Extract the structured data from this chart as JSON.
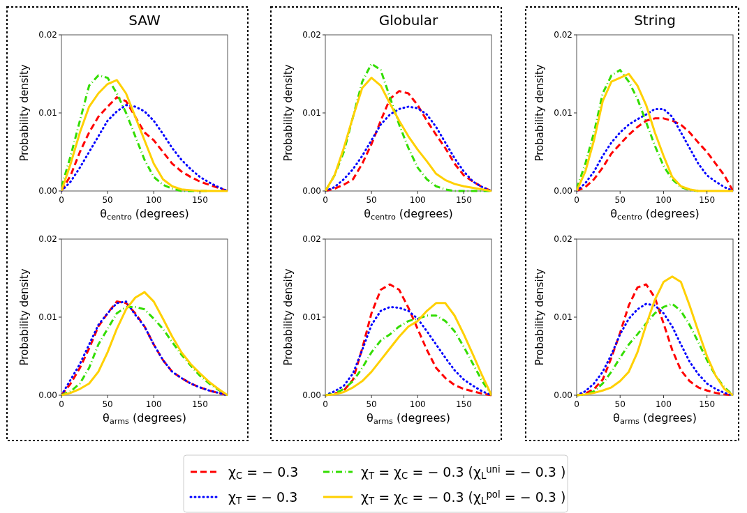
{
  "chart_data": [
    {
      "type": "line",
      "title": "SAW",
      "xlabel": "θ$_{centro}$ (degrees)",
      "ylabel": "Probability density",
      "xlim": [
        0,
        180
      ],
      "xticks": [
        0,
        50,
        100,
        150
      ],
      "ylim": [
        0,
        0.02
      ],
      "yticks": [
        {
          "value": 0,
          "label": "0.00"
        },
        {
          "value": 0.01,
          "label": "0.01"
        },
        {
          "value": 0.02,
          "label": "0.02"
        }
      ],
      "x": [
        0,
        10,
        20,
        30,
        40,
        50,
        60,
        70,
        80,
        90,
        100,
        110,
        120,
        130,
        140,
        150,
        160,
        170,
        180
      ],
      "series": [
        {
          "color": "#ff0000",
          "line_style": "dashed",
          "values": [
            0,
            0.002,
            0.005,
            0.0075,
            0.0095,
            0.0108,
            0.012,
            0.0115,
            0.0095,
            0.0075,
            0.0065,
            0.005,
            0.0035,
            0.0025,
            0.0018,
            0.0012,
            0.0008,
            0.0004,
            0
          ]
        },
        {
          "color": "#0000ff",
          "line_style": "dotted",
          "values": [
            0,
            0.0012,
            0.003,
            0.005,
            0.007,
            0.009,
            0.0102,
            0.011,
            0.0108,
            0.0102,
            0.009,
            0.0073,
            0.0055,
            0.004,
            0.0028,
            0.0018,
            0.0011,
            0.0005,
            0
          ]
        },
        {
          "color": "#33dd00",
          "line_style": "dashdot",
          "values": [
            0.0005,
            0.0045,
            0.009,
            0.0135,
            0.0148,
            0.0145,
            0.0125,
            0.01,
            0.007,
            0.004,
            0.0018,
            0.0008,
            0.0003,
            0,
            0,
            0,
            0,
            null,
            null
          ]
        },
        {
          "color": "#ffd000",
          "line_style": "solid",
          "values": [
            0,
            0.0035,
            0.0075,
            0.0108,
            0.0125,
            0.0137,
            0.0142,
            0.0125,
            0.0095,
            0.0065,
            0.0035,
            0.0015,
            0.0006,
            0.0002,
            0.0001,
            0,
            0,
            0,
            0
          ]
        }
      ]
    },
    {
      "type": "line",
      "title": "Globular",
      "xlabel": "θ$_{centro}$ (degrees)",
      "ylabel": "Probability density",
      "xlim": [
        0,
        180
      ],
      "xticks": [
        0,
        50,
        100,
        150
      ],
      "ylim": [
        0,
        0.02
      ],
      "yticks": [
        {
          "value": 0,
          "label": "0.00"
        },
        {
          "value": 0.01,
          "label": "0.01"
        },
        {
          "value": 0.02,
          "label": "0.02"
        }
      ],
      "x": [
        0,
        10,
        20,
        30,
        40,
        50,
        60,
        70,
        80,
        90,
        100,
        110,
        120,
        130,
        140,
        150,
        160,
        170,
        180
      ],
      "series": [
        {
          "color": "#ff0000",
          "line_style": "dashed",
          "values": [
            0,
            0.0003,
            0.0008,
            0.0015,
            0.0035,
            0.006,
            0.009,
            0.0118,
            0.0128,
            0.0125,
            0.011,
            0.009,
            0.0072,
            0.0055,
            0.0035,
            0.002,
            0.0012,
            0.0005,
            0
          ]
        },
        {
          "color": "#0000ff",
          "line_style": "dotted",
          "values": [
            0,
            0.0005,
            0.0015,
            0.0028,
            0.0045,
            0.0065,
            0.0085,
            0.0098,
            0.0105,
            0.0108,
            0.0106,
            0.0098,
            0.0082,
            0.0062,
            0.0042,
            0.0025,
            0.0012,
            0.0005,
            0
          ]
        },
        {
          "color": "#33dd00",
          "line_style": "dashdot",
          "values": [
            0,
            0.002,
            0.005,
            0.0095,
            0.014,
            0.0163,
            0.0155,
            0.012,
            0.0085,
            0.0055,
            0.003,
            0.0015,
            0.0006,
            0.0002,
            0,
            0,
            0,
            0,
            0
          ]
        },
        {
          "color": "#ffd000",
          "line_style": "solid",
          "values": [
            0,
            0.002,
            0.0055,
            0.0095,
            0.0132,
            0.0145,
            0.0135,
            0.0112,
            0.009,
            0.007,
            0.0053,
            0.0038,
            0.0022,
            0.0014,
            0.0009,
            0.0006,
            0.0004,
            0.0002,
            0
          ]
        }
      ]
    },
    {
      "type": "line",
      "title": "String",
      "xlabel": "θ$_{centro}$ (degrees)",
      "ylabel": "Probability density",
      "xlim": [
        0,
        180
      ],
      "xticks": [
        0,
        50,
        100,
        150
      ],
      "ylim": [
        0,
        0.02
      ],
      "yticks": [
        {
          "value": 0,
          "label": "0.00"
        },
        {
          "value": 0.01,
          "label": "0.01"
        },
        {
          "value": 0.02,
          "label": "0.02"
        }
      ],
      "x": [
        0,
        10,
        20,
        30,
        40,
        50,
        60,
        70,
        80,
        90,
        100,
        110,
        120,
        130,
        140,
        150,
        160,
        170,
        180
      ],
      "series": [
        {
          "color": "#ff0000",
          "line_style": "dashed",
          "values": [
            0,
            0.0005,
            0.0015,
            0.003,
            0.0048,
            0.006,
            0.0072,
            0.0082,
            0.009,
            0.0093,
            0.0093,
            0.009,
            0.0085,
            0.0075,
            0.0062,
            0.005,
            0.0035,
            0.002,
            0
          ]
        },
        {
          "color": "#0000ff",
          "line_style": "dotted",
          "values": [
            0,
            0.001,
            0.0025,
            0.0045,
            0.0062,
            0.0075,
            0.0085,
            0.0092,
            0.0098,
            0.0105,
            0.0105,
            0.0095,
            0.0075,
            0.0055,
            0.0035,
            0.002,
            0.0012,
            0.0005,
            0
          ]
        },
        {
          "color": "#33dd00",
          "line_style": "dashdot",
          "values": [
            0.0003,
            0.0035,
            0.0075,
            0.0125,
            0.0148,
            0.0155,
            0.014,
            0.0118,
            0.0088,
            0.0058,
            0.0032,
            0.0015,
            0.0005,
            0.0001,
            0,
            null,
            null,
            null,
            null
          ]
        },
        {
          "color": "#ffd000",
          "line_style": "solid",
          "values": [
            0,
            0.0025,
            0.0065,
            0.0115,
            0.014,
            0.0145,
            0.015,
            0.0135,
            0.011,
            0.0075,
            0.0045,
            0.0018,
            0.0006,
            0.0002,
            0,
            0,
            0,
            0,
            0
          ]
        }
      ]
    },
    {
      "type": "line",
      "xlabel": "θ$_{arms}$ (degrees)",
      "ylabel": "Probability density",
      "xlim": [
        0,
        180
      ],
      "xticks": [
        0,
        50,
        100,
        150
      ],
      "ylim": [
        0,
        0.02
      ],
      "yticks": [
        {
          "value": 0,
          "label": "0.00"
        },
        {
          "value": 0.01,
          "label": "0.01"
        },
        {
          "value": 0.02,
          "label": "0.02"
        }
      ],
      "x": [
        0,
        10,
        20,
        30,
        40,
        50,
        60,
        70,
        80,
        90,
        100,
        110,
        120,
        130,
        140,
        150,
        160,
        170,
        180
      ],
      "series": [
        {
          "color": "#ff0000",
          "line_style": "dashed",
          "values": [
            0,
            0.0015,
            0.0035,
            0.006,
            0.0088,
            0.0105,
            0.012,
            0.0118,
            0.0105,
            0.0088,
            0.0065,
            0.0045,
            0.003,
            0.0022,
            0.0015,
            0.001,
            0.0006,
            0.0003,
            0
          ]
        },
        {
          "color": "#0000ff",
          "line_style": "dotted",
          "values": [
            0,
            0.002,
            0.004,
            0.0065,
            0.009,
            0.0105,
            0.0118,
            0.012,
            0.0103,
            0.0088,
            0.0065,
            0.0045,
            0.003,
            0.0022,
            0.0015,
            0.001,
            0.0006,
            0.0003,
            0
          ]
        },
        {
          "color": "#33dd00",
          "line_style": "dashdot",
          "values": [
            0,
            0.0005,
            0.0015,
            0.0035,
            0.0065,
            0.0085,
            0.0105,
            0.0113,
            0.0113,
            0.011,
            0.0098,
            0.0085,
            0.0068,
            0.0052,
            0.0038,
            0.0025,
            0.0015,
            0.0007,
            0
          ]
        },
        {
          "color": "#ffd000",
          "line_style": "solid",
          "values": [
            0,
            0.0003,
            0.0008,
            0.0015,
            0.003,
            0.0055,
            0.0085,
            0.011,
            0.0125,
            0.0132,
            0.012,
            0.0098,
            0.0075,
            0.0055,
            0.004,
            0.0028,
            0.0017,
            0.0008,
            0
          ]
        }
      ]
    },
    {
      "type": "line",
      "xlabel": "θ$_{arms}$ (degrees)",
      "ylabel": "Probability density",
      "xlim": [
        0,
        180
      ],
      "xticks": [
        0,
        50,
        100,
        150
      ],
      "ylim": [
        0,
        0.02
      ],
      "yticks": [
        {
          "value": 0,
          "label": "0.00"
        },
        {
          "value": 0.01,
          "label": "0.01"
        },
        {
          "value": 0.02,
          "label": "0.02"
        }
      ],
      "legend": "bottom",
      "x": [
        0,
        10,
        20,
        30,
        40,
        50,
        60,
        70,
        80,
        90,
        100,
        110,
        120,
        130,
        140,
        150,
        160,
        170,
        180
      ],
      "series": [
        {
          "name": "χ$_{C}$ = − 0.3",
          "color": "#ff0000",
          "line_style": "dashed",
          "values": [
            0,
            0.0002,
            0.0006,
            0.002,
            0.006,
            0.0105,
            0.0135,
            0.0142,
            0.0135,
            0.0112,
            0.0085,
            0.0058,
            0.0035,
            0.0022,
            0.0013,
            0.0008,
            0.0005,
            0.0002,
            0
          ]
        },
        {
          "name": "χ$_{T}$ = − 0.3",
          "color": "#0000ff",
          "line_style": "dotted",
          "values": [
            0,
            0.0005,
            0.0012,
            0.0028,
            0.0058,
            0.009,
            0.0108,
            0.0113,
            0.0112,
            0.0108,
            0.0098,
            0.0082,
            0.0065,
            0.0048,
            0.0032,
            0.002,
            0.0012,
            0.0005,
            0
          ]
        },
        {
          "name": "χ$_{T}$ = χ$_{C}$ = − 0.3 (χ$_{L}$$^{uni}$ = − 0.3 )",
          "color": "#33dd00",
          "line_style": "dashdot",
          "values": [
            0,
            0.0002,
            0.0008,
            0.0018,
            0.0035,
            0.0055,
            0.007,
            0.0078,
            0.0088,
            0.0095,
            0.0098,
            0.0102,
            0.0102,
            0.0095,
            0.0082,
            0.0062,
            0.004,
            0.0018,
            0
          ]
        },
        {
          "name": "χ$_{T}$ = χ$_{C}$ = − 0.3 (χ$_{L}$$^{pol}$ = − 0.3 )",
          "color": "#ffd000",
          "line_style": "solid",
          "values": [
            0,
            0.0001,
            0.0004,
            0.001,
            0.0018,
            0.003,
            0.0045,
            0.006,
            0.0075,
            0.0088,
            0.0095,
            0.0108,
            0.0118,
            0.0118,
            0.0102,
            0.0078,
            0.0052,
            0.0025,
            0
          ]
        }
      ]
    },
    {
      "type": "line",
      "xlabel": "θ$_{arms}$ (degrees)",
      "ylabel": "Probability density",
      "xlim": [
        0,
        180
      ],
      "xticks": [
        0,
        50,
        100,
        150
      ],
      "ylim": [
        0,
        0.02
      ],
      "yticks": [
        {
          "value": 0,
          "label": "0.00"
        },
        {
          "value": 0.01,
          "label": "0.01"
        },
        {
          "value": 0.02,
          "label": "0.02"
        }
      ],
      "x": [
        0,
        10,
        20,
        30,
        40,
        50,
        60,
        70,
        80,
        90,
        100,
        110,
        120,
        130,
        140,
        150,
        160,
        170,
        180
      ],
      "series": [
        {
          "color": "#ff0000",
          "line_style": "dashed",
          "values": [
            0,
            0.0002,
            0.0008,
            0.002,
            0.0048,
            0.008,
            0.0115,
            0.0138,
            0.0142,
            0.0125,
            0.0092,
            0.0058,
            0.0032,
            0.0018,
            0.001,
            0.0006,
            0.0003,
            0.0001,
            0
          ]
        },
        {
          "color": "#0000ff",
          "line_style": "dotted",
          "values": [
            0,
            0.0005,
            0.0015,
            0.003,
            0.0052,
            0.0078,
            0.0098,
            0.011,
            0.0117,
            0.0115,
            0.0105,
            0.0088,
            0.0065,
            0.0043,
            0.0027,
            0.0015,
            0.0008,
            0.0003,
            0
          ]
        },
        {
          "color": "#33dd00",
          "line_style": "dashdot",
          "values": [
            0,
            0.0001,
            0.0005,
            0.0015,
            0.003,
            0.0048,
            0.0065,
            0.0078,
            0.0092,
            0.0105,
            0.0113,
            0.0117,
            0.0108,
            0.009,
            0.0068,
            0.0045,
            0.0025,
            0.001,
            0
          ]
        },
        {
          "color": "#ffd000",
          "line_style": "solid",
          "values": [
            0,
            0.0001,
            0.0003,
            0.0006,
            0.001,
            0.0018,
            0.003,
            0.0055,
            0.009,
            0.0122,
            0.0145,
            0.0152,
            0.0145,
            0.0115,
            0.0082,
            0.005,
            0.0025,
            0.0008,
            0
          ]
        }
      ]
    }
  ]
}
